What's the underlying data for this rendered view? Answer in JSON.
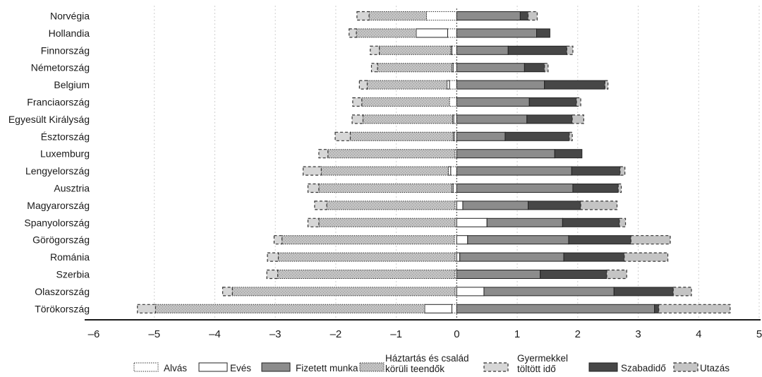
{
  "chart_data": {
    "type": "bar",
    "orientation": "horizontal",
    "stacked": true,
    "categories": [
      "Norvégia",
      "Hollandia",
      "Finnország",
      "Németország",
      "Belgium",
      "Franciaország",
      "Egyesült Királyság",
      "Észtország",
      "Luxemburg",
      "Lengyelország",
      "Ausztria",
      "Magyarország",
      "Spanyolország",
      "Görögország",
      "Románia",
      "Szerbia",
      "Olaszország",
      "Törökország"
    ],
    "xlim": [
      -6,
      5
    ],
    "xticks": [
      -6,
      -5,
      -4,
      -3,
      -2,
      -1,
      0,
      1,
      2,
      3,
      4,
      5
    ],
    "grid": "vertical",
    "legend_position": "bottom",
    "series": [
      {
        "name": "Alvás",
        "key": "alvas",
        "values": [
          -0.5,
          -0.15,
          -0.08,
          -0.06,
          -0.12,
          -0.12,
          -0.05,
          -0.04,
          -0.03,
          -0.1,
          -0.06,
          -0.03,
          -0.03,
          -0.04,
          -0.03,
          -0.03,
          -0.03,
          -0.08
        ],
        "color": "#ffffff",
        "pattern": "dotted"
      },
      {
        "name": "Evés",
        "key": "eves",
        "values": [
          0.0,
          -0.52,
          -0.02,
          -0.02,
          -0.04,
          0.0,
          -0.02,
          -0.02,
          0.0,
          -0.04,
          -0.02,
          0.1,
          0.5,
          0.18,
          0.05,
          0.0,
          0.45,
          -0.45
        ],
        "color": "#ffffff",
        "pattern": "solid"
      },
      {
        "name": "Fizetett munka",
        "key": "fizetett",
        "values": [
          1.05,
          1.32,
          0.85,
          1.12,
          1.45,
          1.2,
          1.16,
          0.8,
          1.62,
          1.9,
          1.92,
          1.08,
          1.25,
          1.67,
          1.72,
          1.38,
          2.15,
          3.27
        ],
        "color": "#8c8c8c",
        "pattern": "solid"
      },
      {
        "name": "Háztartás és család körüli teendők",
        "key": "haztartas",
        "values": [
          -0.95,
          -0.99,
          -1.18,
          -1.23,
          -1.32,
          -1.45,
          -1.48,
          -1.7,
          -2.1,
          -2.1,
          -2.2,
          -2.12,
          -2.25,
          -2.85,
          -2.92,
          -2.93,
          -3.68,
          -4.45
        ],
        "color": "#bdbdbd",
        "pattern": "dotted"
      },
      {
        "name": "Gyermekkel töltött idő",
        "key": "gyermek",
        "values": [
          -0.2,
          -0.12,
          -0.15,
          -0.1,
          -0.13,
          -0.15,
          -0.18,
          -0.25,
          -0.15,
          -0.3,
          -0.18,
          -0.2,
          -0.18,
          -0.13,
          -0.18,
          -0.18,
          -0.16,
          -0.3
        ],
        "color": "#d6d6d6",
        "pattern": "dashed"
      },
      {
        "name": "Szabadidő",
        "key": "szabadido",
        "values": [
          0.13,
          0.22,
          0.97,
          0.33,
          1.0,
          0.78,
          0.75,
          1.06,
          0.45,
          0.8,
          0.75,
          0.87,
          0.94,
          1.03,
          1.0,
          1.1,
          0.98,
          0.07
        ],
        "color": "#474747",
        "pattern": "solid"
      },
      {
        "name": "Utazás",
        "key": "utazas",
        "values": [
          0.15,
          0.0,
          0.1,
          0.06,
          0.05,
          0.07,
          0.19,
          0.05,
          0.0,
          0.08,
          0.05,
          0.6,
          0.1,
          0.65,
          0.72,
          0.33,
          0.3,
          1.18
        ],
        "color": "#c4c4c4",
        "pattern": "dashed"
      }
    ],
    "legend": [
      "Alvás",
      "Evés",
      "Fizetett munka",
      "Háztartás és család körüli teendők",
      "Gyermekkel töltött idő",
      "Szabadidő",
      "Utazás"
    ]
  }
}
